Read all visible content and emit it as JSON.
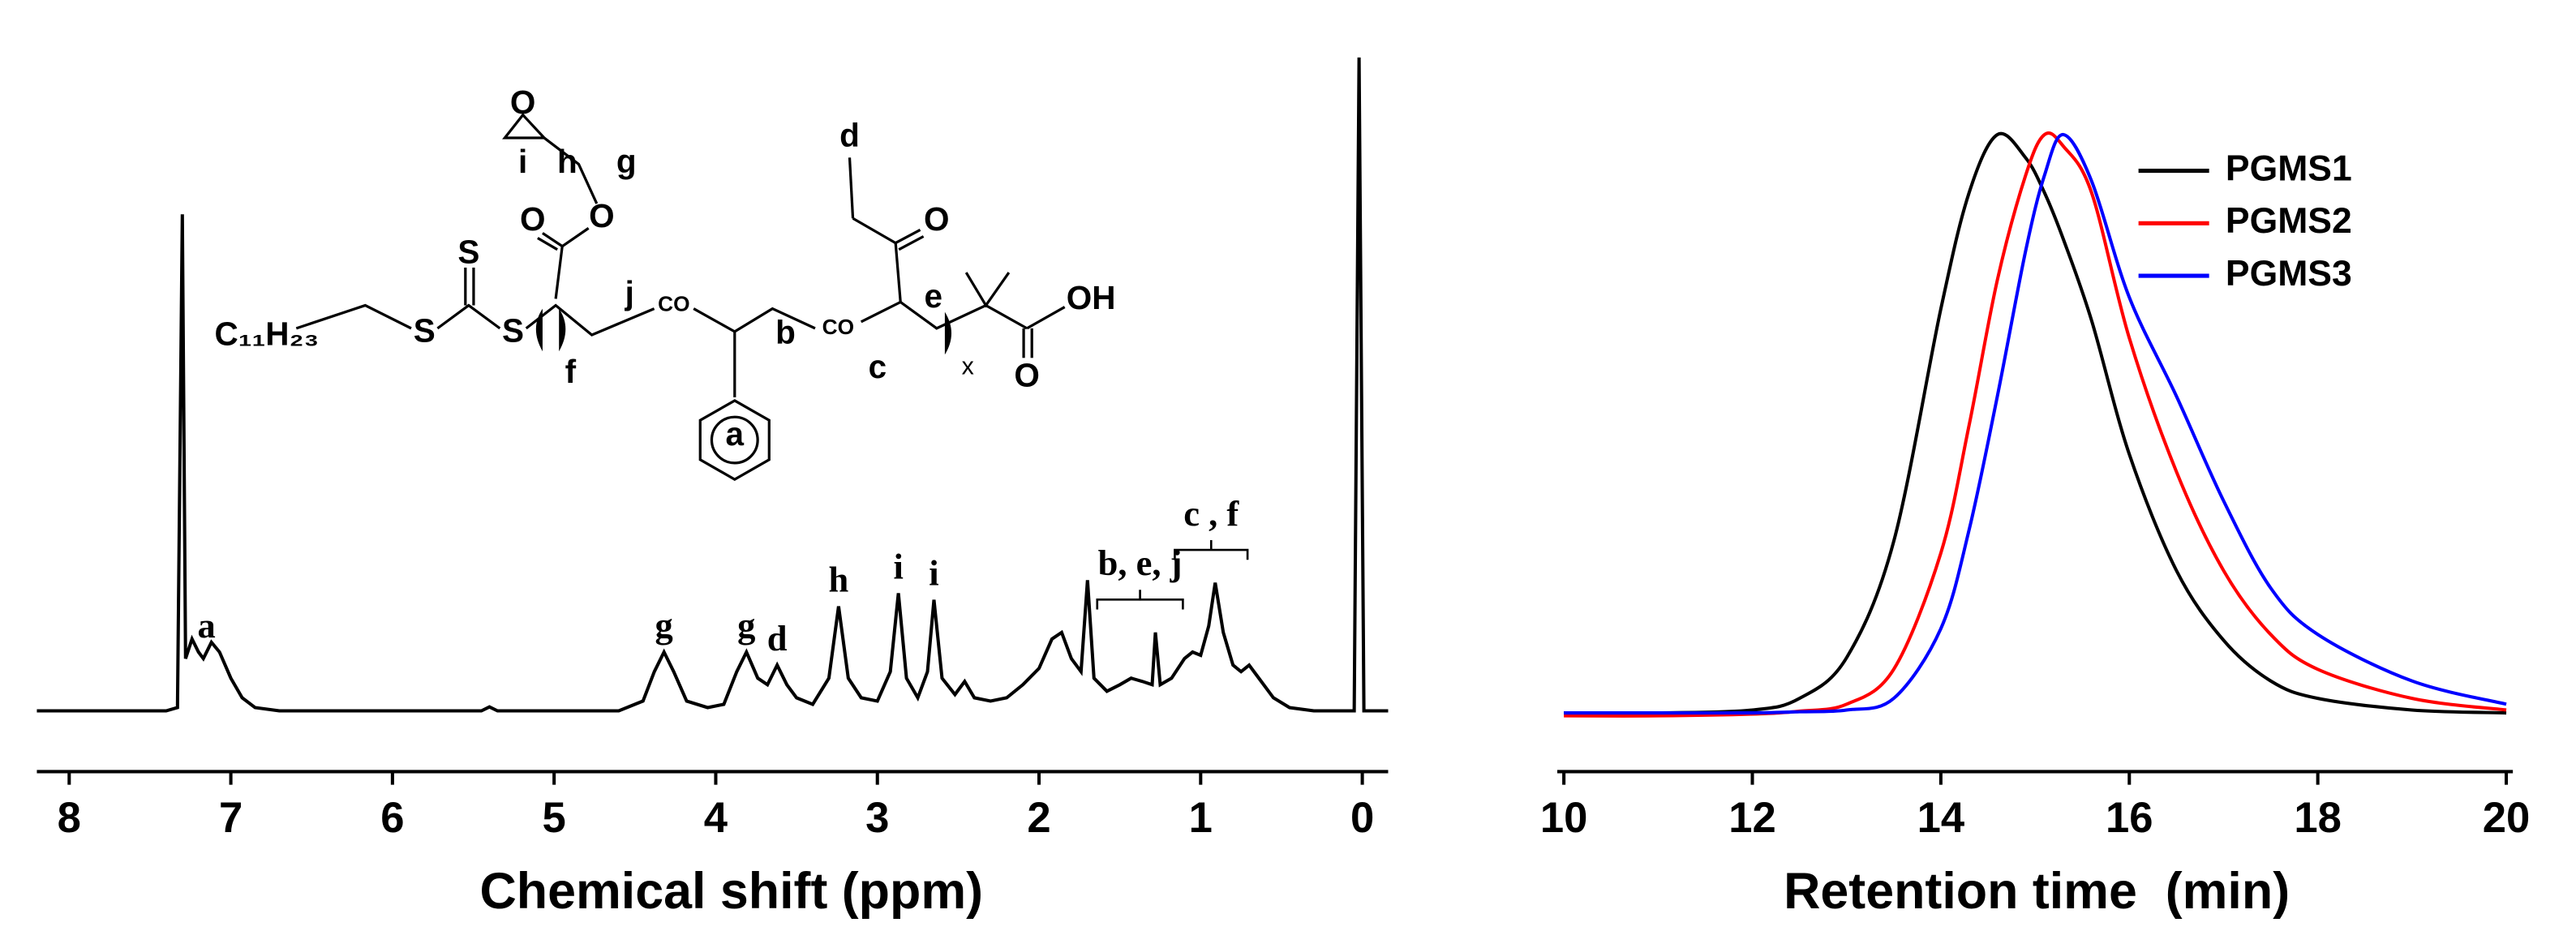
{
  "chart_data": [
    {
      "type": "line",
      "xlabel": "Chemical shift (ppm)",
      "x": [
        8.2,
        7.4,
        7.33,
        7.3,
        7.28,
        7.24,
        7.2,
        7.17,
        7.12,
        7.07,
        7.0,
        6.93,
        6.85,
        6.7,
        5.45,
        5.4,
        5.35,
        4.6,
        4.45,
        4.38,
        4.32,
        4.26,
        4.18,
        4.05,
        3.95,
        3.87,
        3.81,
        3.74,
        3.68,
        3.62,
        3.56,
        3.5,
        3.4,
        3.3,
        3.24,
        3.18,
        3.1,
        3.0,
        2.92,
        2.87,
        2.82,
        2.75,
        2.69,
        2.65,
        2.6,
        2.52,
        2.46,
        2.4,
        2.3,
        2.2,
        2.1,
        2.0,
        1.92,
        1.86,
        1.8,
        1.74,
        1.7,
        1.66,
        1.58,
        1.5,
        1.43,
        1.36,
        1.3,
        1.28,
        1.25,
        1.18,
        1.1,
        1.05,
        1.0,
        0.95,
        0.91,
        0.86,
        0.8,
        0.75,
        0.7,
        0.64,
        0.55,
        0.45,
        0.3,
        0.05,
        0.02,
        -0.01,
        -0.16
      ],
      "series": [
        {
          "color": "#000000",
          "values": [
            0,
            0,
            0.5,
            76,
            8,
            11,
            9,
            8,
            10.5,
            9,
            5,
            2,
            0.5,
            0,
            0,
            0.6,
            0,
            0,
            1.5,
            6,
            9,
            6,
            1.5,
            0.5,
            1,
            6,
            9,
            5,
            4,
            7,
            4,
            2,
            1,
            5,
            16,
            5,
            2,
            1.5,
            6,
            18,
            5,
            2,
            6,
            17,
            5,
            2.5,
            4.5,
            2,
            1.5,
            2,
            4,
            6.5,
            11,
            12,
            8,
            6,
            20,
            5,
            3,
            4,
            5,
            4.5,
            4,
            12,
            4,
            5,
            8,
            9,
            8.5,
            13,
            19.6,
            12,
            7,
            6,
            7,
            5,
            2,
            0.5,
            0,
            0,
            100,
            0,
            0
          ]
        }
      ],
      "xlim": [
        8.2,
        -0.16
      ],
      "xticks": [
        8,
        7,
        6,
        5,
        4,
        3,
        2,
        1,
        0
      ],
      "ylim": [
        -9.3,
        100
      ],
      "peak_labels": [
        {
          "text": "a",
          "x": 7.15
        },
        {
          "text": "g",
          "x": 4.32
        },
        {
          "text": "g",
          "x": 3.81
        },
        {
          "text": "d",
          "x": 3.62
        },
        {
          "text": "h",
          "x": 3.24
        },
        {
          "text": "i",
          "x": 2.87
        },
        {
          "text": "i",
          "x": 2.65
        }
      ],
      "bracket_labels": [
        {
          "text": "b, e, j",
          "x": [
            1.64,
            1.11
          ]
        },
        {
          "text": "c , f",
          "x": [
            1.16,
            0.71
          ]
        }
      ],
      "structure_labels": [
        "O",
        "i",
        "h",
        "g",
        "O",
        "O",
        "S",
        "C₁₁H₂₃",
        "S",
        "S",
        "f",
        "j",
        "CO",
        "b",
        "CO",
        "a",
        "d",
        "O",
        "c",
        "e",
        "x",
        "OH",
        "O"
      ]
    },
    {
      "type": "line",
      "xlabel": "Retention time  (min)",
      "x": [
        10,
        11,
        12,
        12.5,
        13,
        13.5,
        14,
        14.3,
        14.6,
        14.9,
        15.1,
        15.3,
        15.6,
        16,
        16.5,
        17,
        17.5,
        18,
        19,
        20
      ],
      "series": [
        {
          "name": "PGMS1",
          "color": "#000000",
          "values": [
            0.005,
            0.005,
            0.01,
            0.03,
            0.1,
            0.3,
            0.7,
            0.9,
            1,
            0.96,
            0.9,
            0.82,
            0.68,
            0.45,
            0.25,
            0.13,
            0.06,
            0.03,
            0.01,
            0.005
          ]
        },
        {
          "name": "PGMS2",
          "color": "#ff0000",
          "values": [
            0,
            0,
            0.003,
            0.008,
            0.02,
            0.08,
            0.28,
            0.5,
            0.75,
            0.93,
            1,
            0.98,
            0.9,
            0.65,
            0.42,
            0.25,
            0.14,
            0.08,
            0.03,
            0.01
          ]
        },
        {
          "name": "PGMS3",
          "color": "#0000ff",
          "values": [
            0.005,
            0.005,
            0.005,
            0.007,
            0.01,
            0.03,
            0.15,
            0.32,
            0.55,
            0.8,
            0.93,
            1,
            0.92,
            0.72,
            0.55,
            0.37,
            0.22,
            0.14,
            0.06,
            0.02
          ]
        }
      ],
      "xlim": [
        9.93,
        20.07
      ],
      "xticks": [
        10,
        12,
        14,
        16,
        18,
        20
      ],
      "ylim": [
        -0.096,
        1
      ],
      "legend": "upper right"
    }
  ]
}
